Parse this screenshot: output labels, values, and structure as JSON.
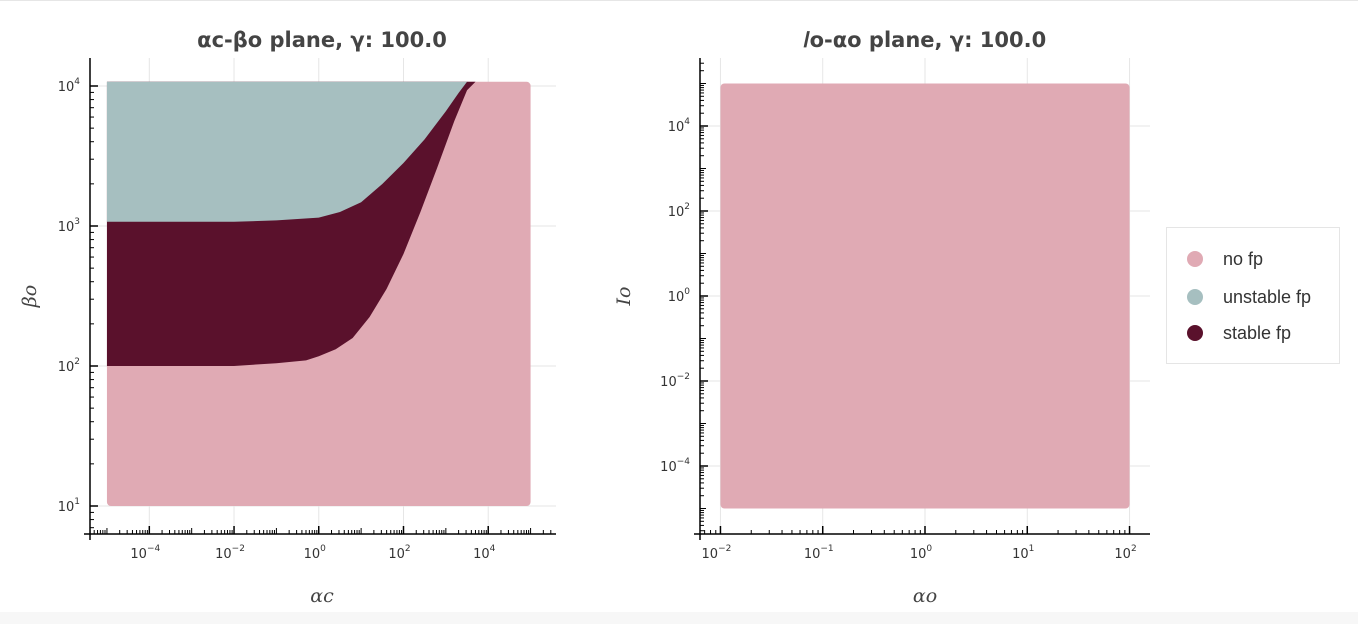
{
  "colors": {
    "no_fp": "#e0aab4",
    "unstable_fp": "#a6bfc0",
    "stable_fp": "#5a112c"
  },
  "legend": {
    "items": [
      {
        "label": "no fp",
        "color": "#e0aab4"
      },
      {
        "label": "unstable fp",
        "color": "#a6bfc0"
      },
      {
        "label": "stable fp",
        "color": "#5a112c"
      }
    ]
  },
  "chart_data": [
    {
      "type": "heatmap",
      "title": "αc-βo plane, γ: 100.0",
      "xlabel": "αc",
      "ylabel": "βo",
      "xscale": "log",
      "yscale": "log",
      "xlim_exp": [
        -5.4,
        5.6
      ],
      "ylim_exp": [
        0.8,
        4.2
      ],
      "data_x_exp": [
        -5,
        5
      ],
      "data_y_exp": [
        1,
        4
      ],
      "xticks": [
        {
          "base": "10",
          "exp": "−4"
        },
        {
          "base": "10",
          "exp": "−2"
        },
        {
          "base": "10",
          "exp": "0"
        },
        {
          "base": "10",
          "exp": "2"
        },
        {
          "base": "10",
          "exp": "4"
        }
      ],
      "xtick_exps": [
        -4,
        -2,
        0,
        2,
        4
      ],
      "yticks": [
        {
          "base": "10",
          "exp": "1"
        },
        {
          "base": "10",
          "exp": "2"
        },
        {
          "base": "10",
          "exp": "3"
        },
        {
          "base": "10",
          "exp": "4"
        }
      ],
      "ytick_exps": [
        1,
        2,
        3,
        4
      ],
      "regions": {
        "unstable_fp_lower_boundary": [
          [
            -5,
            3.03
          ],
          [
            -2,
            3.03
          ],
          [
            -1,
            3.04
          ],
          [
            0,
            3.06
          ],
          [
            0.5,
            3.1
          ],
          [
            1,
            3.17
          ],
          [
            1.5,
            3.3
          ],
          [
            2,
            3.45
          ],
          [
            2.5,
            3.62
          ],
          [
            3,
            3.82
          ],
          [
            3.3,
            3.95
          ],
          [
            3.5,
            4.03
          ]
        ],
        "stable_fp_lower_boundary": [
          [
            -5,
            2.0
          ],
          [
            -2,
            2.0
          ],
          [
            -1,
            2.02
          ],
          [
            -0.3,
            2.04
          ],
          [
            0,
            2.07
          ],
          [
            0.4,
            2.12
          ],
          [
            0.8,
            2.2
          ],
          [
            1.2,
            2.35
          ],
          [
            1.6,
            2.55
          ],
          [
            2,
            2.8
          ],
          [
            2.4,
            3.1
          ],
          [
            2.8,
            3.42
          ],
          [
            3.2,
            3.75
          ],
          [
            3.5,
            3.97
          ],
          [
            3.7,
            4.03
          ]
        ],
        "upper_y_exp": 4.03
      },
      "legend": "right"
    },
    {
      "type": "heatmap",
      "title": "𝐼o-αo plane, γ: 100.0",
      "xlabel": "αo",
      "ylabel": "𝐼o",
      "xscale": "log",
      "yscale": "log",
      "xlim_exp": [
        -2.2,
        2.2
      ],
      "ylim_exp": [
        -5.6,
        5.6
      ],
      "data_x_exp": [
        -2,
        2
      ],
      "data_y_exp": [
        -5,
        5
      ],
      "xticks": [
        {
          "base": "10",
          "exp": "−2"
        },
        {
          "base": "10",
          "exp": "−1"
        },
        {
          "base": "10",
          "exp": "0"
        },
        {
          "base": "10",
          "exp": "1"
        },
        {
          "base": "10",
          "exp": "2"
        }
      ],
      "xtick_exps": [
        -2,
        -1,
        0,
        1,
        2
      ],
      "yticks": [
        {
          "base": "10",
          "exp": "−4"
        },
        {
          "base": "10",
          "exp": "−2"
        },
        {
          "base": "10",
          "exp": "0"
        },
        {
          "base": "10",
          "exp": "2"
        },
        {
          "base": "10",
          "exp": "4"
        }
      ],
      "ytick_exps": [
        -4,
        -2,
        0,
        2,
        4
      ],
      "region": "no fp"
    }
  ]
}
